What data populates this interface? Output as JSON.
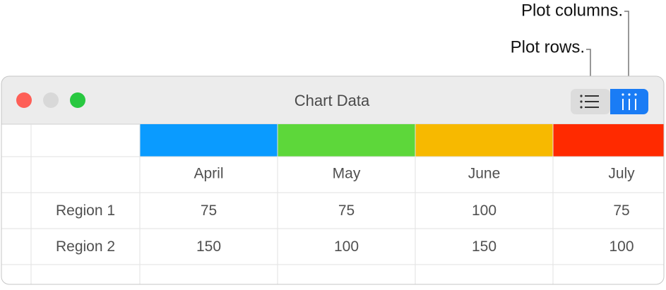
{
  "callouts": {
    "plot_columns": "Plot columns.",
    "plot_rows": "Plot rows."
  },
  "window": {
    "title": "Chart Data"
  },
  "table": {
    "column_colors": [
      "#0a9bff",
      "#5dd73a",
      "#f7b900",
      "#ff2a00"
    ],
    "header": [
      "April",
      "May",
      "June",
      "July"
    ],
    "rows": [
      [
        "Region 1",
        75,
        75,
        100,
        75
      ],
      [
        "Region 2",
        150,
        100,
        150,
        100
      ]
    ]
  }
}
